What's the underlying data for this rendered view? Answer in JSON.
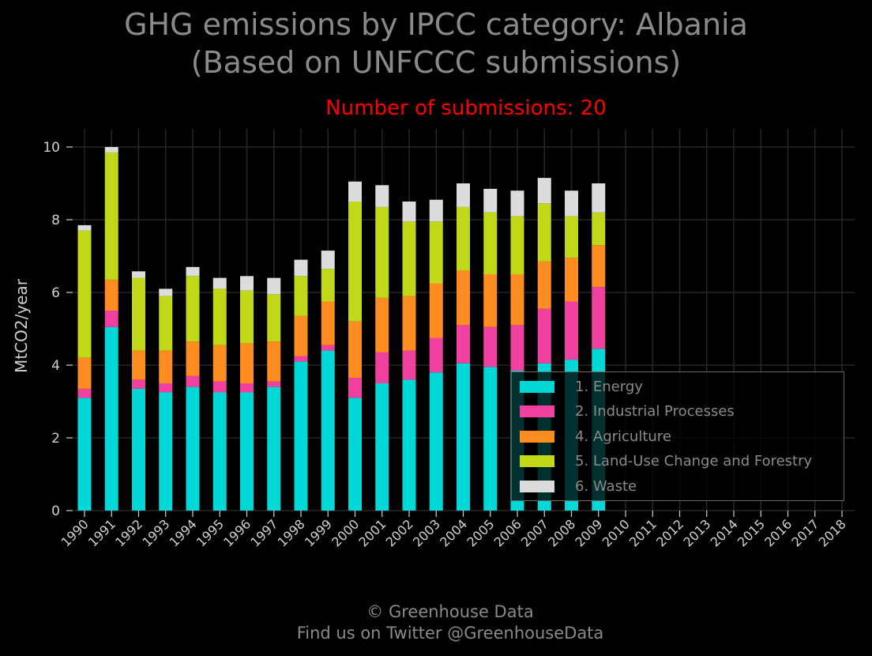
{
  "header": {
    "title_line1": "GHG emissions by IPCC category: Albania",
    "title_line2": "(Based on UNFCCC submissions)",
    "subtitle": "Number of submissions: 20"
  },
  "footer": {
    "line1": "© Greenhouse Data",
    "line2": "Find us on Twitter @GreenhouseData"
  },
  "colors": {
    "background": "#000000",
    "grid": "#262626",
    "axis_text": "#d0d0d0",
    "title": "#8a8a8a",
    "subtitle": "#ff0000"
  },
  "chart_data": {
    "type": "bar",
    "stacked": true,
    "ylabel": "MtCO2/year",
    "ylim": [
      0,
      10.5
    ],
    "yticks": [
      0,
      2,
      4,
      6,
      8,
      10
    ],
    "grid": true,
    "legend_position": "bottom-right",
    "categories": [
      "1990",
      "1991",
      "1992",
      "1993",
      "1994",
      "1995",
      "1996",
      "1997",
      "1998",
      "1999",
      "2000",
      "2001",
      "2002",
      "2003",
      "2004",
      "2005",
      "2006",
      "2007",
      "2008",
      "2009",
      "2010",
      "2011",
      "2012",
      "2013",
      "2014",
      "2015",
      "2016",
      "2017",
      "2018"
    ],
    "series": [
      {
        "name": "1. Energy",
        "color": "#00d8d8",
        "values": [
          3.1,
          5.05,
          3.35,
          3.25,
          3.4,
          3.25,
          3.25,
          3.4,
          4.1,
          4.4,
          3.1,
          3.5,
          3.6,
          3.8,
          4.05,
          3.95,
          3.85,
          4.05,
          4.15,
          4.45,
          null,
          null,
          null,
          null,
          null,
          null,
          null,
          null,
          null
        ]
      },
      {
        "name": "2. Industrial Processes",
        "color": "#f040a0",
        "values": [
          0.25,
          0.45,
          0.25,
          0.25,
          0.3,
          0.3,
          0.25,
          0.15,
          0.15,
          0.15,
          0.55,
          0.85,
          0.8,
          0.95,
          1.05,
          1.1,
          1.25,
          1.5,
          1.6,
          1.7,
          null,
          null,
          null,
          null,
          null,
          null,
          null,
          null,
          null
        ]
      },
      {
        "name": "4. Agriculture",
        "color": "#ff8c20",
        "values": [
          0.85,
          0.85,
          0.8,
          0.9,
          0.95,
          1.0,
          1.1,
          1.1,
          1.1,
          1.2,
          1.55,
          1.5,
          1.5,
          1.5,
          1.5,
          1.45,
          1.4,
          1.3,
          1.2,
          1.15,
          null,
          null,
          null,
          null,
          null,
          null,
          null,
          null,
          null
        ]
      },
      {
        "name": "5. Land-Use Change and Forestry",
        "color": "#c0d818",
        "values": [
          3.5,
          3.5,
          2.0,
          1.5,
          1.8,
          1.55,
          1.45,
          1.3,
          1.1,
          0.9,
          3.3,
          2.5,
          2.05,
          1.7,
          1.75,
          1.7,
          1.6,
          1.6,
          1.15,
          0.9,
          null,
          null,
          null,
          null,
          null,
          null,
          null,
          null,
          null
        ]
      },
      {
        "name": "6. Waste",
        "color": "#dcdcdc",
        "values": [
          0.15,
          0.15,
          0.18,
          0.2,
          0.25,
          0.3,
          0.4,
          0.45,
          0.45,
          0.5,
          0.55,
          0.6,
          0.55,
          0.6,
          0.65,
          0.65,
          0.7,
          0.7,
          0.7,
          0.8,
          null,
          null,
          null,
          null,
          null,
          null,
          null,
          null,
          null
        ]
      }
    ]
  }
}
